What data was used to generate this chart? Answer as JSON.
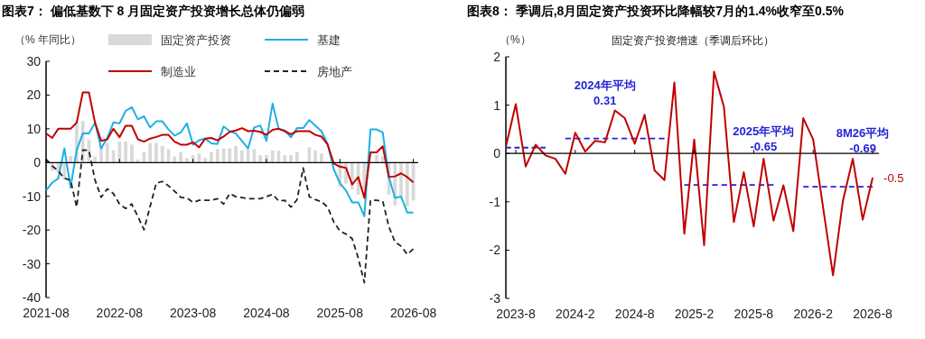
{
  "chart_data": [
    {
      "type": "line",
      "title": "图表7：  偏低基数下 8 月固定资产投资增长总体仍偏弱",
      "ylabel": "（% 年同比）",
      "legend": "top",
      "xlim": [
        "2021-08",
        "2026-08-25"
      ],
      "xticks": [
        "2021-08",
        "2022-08",
        "2023-08",
        "2024-08",
        "2025-08",
        "2026-08"
      ],
      "ylim": [
        -40,
        30
      ],
      "yticks": [
        -40,
        -30,
        -20,
        -10,
        0,
        10,
        20,
        30
      ],
      "x": [
        "2021-08",
        "2021-09",
        "2021-10",
        "2021-11",
        "2021-12",
        "2022-01",
        "2022-02",
        "2022-03",
        "2022-04",
        "2022-05",
        "2022-06",
        "2022-07",
        "2022-08",
        "2022-09",
        "2022-10",
        "2022-11",
        "2022-12",
        "2023-01",
        "2023-02",
        "2023-03",
        "2023-04",
        "2023-05",
        "2023-06",
        "2023-07",
        "2023-08",
        "2023-09",
        "2023-10",
        "2023-11",
        "2023-12",
        "2024-01",
        "2024-02",
        "2024-03",
        "2024-04",
        "2024-05",
        "2024-06",
        "2024-07",
        "2024-08",
        "2024-09",
        "2024-10",
        "2024-11",
        "2024-12",
        "2025-01",
        "2025-02",
        "2025-03",
        "2025-04",
        "2025-05",
        "2025-06",
        "2025-07",
        "2025-08",
        "2025-09",
        "2025-10",
        "2025-11",
        "2025-12",
        "2026-01",
        "2026-02",
        "2026-03",
        "2026-04",
        "2026-05",
        "2026-06",
        "2026-07",
        "2026-08"
      ],
      "series": [
        {
          "name": "固定资产投资",
          "type": "bar",
          "color": "#d9d9d9",
          "values": [
            null,
            -2.5,
            -3,
            -5,
            2,
            12.3,
            12.3,
            6.7,
            1.8,
            4.9,
            5.8,
            3.6,
            6.2,
            6.2,
            5.3,
            0.9,
            3.1,
            5.8,
            5.8,
            4.9,
            4,
            1.8,
            3.1,
            1.3,
            2.2,
            2.7,
            1.3,
            3.1,
            4,
            4.2,
            4.2,
            4.9,
            3.6,
            4,
            4,
            2.2,
            2.2,
            3.6,
            3.6,
            2.2,
            2.2,
            3.1,
            null,
            4.5,
            3.6,
            2.7,
            null,
            null,
            -7.2,
            -6.2,
            -8,
            -9.5,
            -8,
            null,
            2.2,
            1.8,
            -9.5,
            -12.7,
            -10,
            -13,
            -11.3
          ]
        },
        {
          "name": "基建",
          "color": "#1cb0e4",
          "line_style": "solid",
          "values": [
            -8.3,
            -6.0,
            -4.7,
            4.2,
            -7.4,
            3.7,
            8.6,
            8.6,
            11.8,
            4.2,
            7.3,
            11.9,
            11.6,
            15.3,
            16.4,
            12.8,
            13.7,
            10.4,
            12.2,
            12.2,
            9.8,
            8,
            8.9,
            11.6,
            5.3,
            6.6,
            7.1,
            5.7,
            5.5,
            10.7,
            9.3,
            8.6,
            6.4,
            4.2,
            10.4,
            11.0,
            6.4,
            17.5,
            10,
            9.5,
            7.5,
            10.2,
            10.2,
            12.6,
            10.9,
            9.3,
            5.5,
            -2.0,
            -6.1,
            -8.3,
            -11.8,
            -11.8,
            -15.9,
            9.8,
            9.8,
            8.9,
            -4.3,
            -10.5,
            -10.1,
            -14.8,
            -14.8
          ]
        },
        {
          "name": "制造业",
          "color": "#c00000",
          "line_style": "solid",
          "values": [
            8.6,
            7.3,
            10,
            10,
            10,
            11.8,
            20.8,
            20.8,
            11.8,
            6.4,
            6.9,
            10,
            7.5,
            10.9,
            10.9,
            6.9,
            6.2,
            7.1,
            7.6,
            8.2,
            8.2,
            6.2,
            5.3,
            5.3,
            6,
            4.5,
            7.1,
            7.3,
            6.6,
            7.7,
            9.1,
            9.5,
            10.2,
            9.3,
            9.4,
            9.1,
            8.2,
            9.7,
            10,
            9.3,
            8.4,
            9.3,
            9.3,
            9.3,
            8.2,
            7.7,
            5.3,
            -0.3,
            -1.2,
            -1.6,
            -6.5,
            -4.3,
            -10.5,
            3.0,
            3.0,
            4.8,
            -4.3,
            -4.1,
            -3.2,
            -4.3,
            -5.9
          ]
        },
        {
          "name": "房地产",
          "color": "#222222",
          "line_style": "dashed",
          "values": [
            1,
            -1,
            -2.5,
            -4.7,
            -5.2,
            -13.2,
            3.7,
            3.6,
            -5.2,
            -10.3,
            -7.8,
            -9.2,
            -12.3,
            -13.6,
            -12.3,
            -16,
            -19.9,
            -13,
            -6.1,
            -5.6,
            -6.9,
            -8.5,
            -10.3,
            -10.5,
            -11.8,
            -11.2,
            -11.2,
            -11.2,
            -10.7,
            -12.3,
            -9.2,
            -10.1,
            -10.4,
            -10.7,
            -10.7,
            -10.7,
            -10.1,
            -9.4,
            -11.4,
            -11.2,
            -13.2,
            -11,
            -1.6,
            -10.1,
            -11,
            -11.6,
            -13.2,
            -17.6,
            -20.3,
            -21.2,
            -22.5,
            -28.3,
            -35.6,
            -11.2,
            -11.2,
            -11.4,
            -19,
            -23.5,
            -24.8,
            -27.2,
            -25.6
          ]
        }
      ]
    },
    {
      "type": "line",
      "title": "图表8：  季调后,8月固定资产投资环比降幅较7月的1.4%收窄至0.5%",
      "subtitle": "固定资产投资增速（季调后环比）",
      "ylabel": "（%）",
      "xlim": [
        "2023-07",
        "2026-08-20"
      ],
      "xticks": [
        {
          "value": "2023-08",
          "label": "2023-8"
        },
        {
          "value": "2024-02",
          "label": "2024-2"
        },
        {
          "value": "2024-08",
          "label": "2024-8"
        },
        {
          "value": "2025-02",
          "label": "2025-2"
        },
        {
          "value": "2025-08",
          "label": "2025-8"
        },
        {
          "value": "2026-02",
          "label": "2026-2"
        },
        {
          "value": "2026-08",
          "label": "2026-8"
        }
      ],
      "ylim": [
        -3,
        2
      ],
      "yticks": [
        -3,
        -2,
        -1,
        0,
        1,
        2
      ],
      "series": [
        {
          "color": "#2323d8",
          "line_style": "dashed",
          "x": [
            "2023-07",
            "2023-11"
          ],
          "values": [
            0.12,
            0.12
          ]
        },
        {
          "color": "#2323d8",
          "line_style": "dashed",
          "x": [
            "2024-01",
            "2024-11"
          ],
          "values": [
            0.31,
            0.31
          ]
        },
        {
          "color": "#2323d8",
          "line_style": "dashed",
          "x": [
            "2025-01",
            "2025-10"
          ],
          "values": [
            -0.65,
            -0.65
          ]
        },
        {
          "color": "#2323d8",
          "line_style": "dashed",
          "x": [
            "2026-01",
            "2026-08"
          ],
          "values": [
            -0.69,
            -0.69
          ]
        },
        {
          "color": "#c00000",
          "line_style": "solid",
          "x": [
            "2023-07",
            "2023-08",
            "2023-09",
            "2023-10",
            "2023-11",
            "2023-12",
            "2024-01",
            "2024-02",
            "2024-03",
            "2024-04",
            "2024-05",
            "2024-06",
            "2024-07",
            "2024-08",
            "2024-09",
            "2024-10",
            "2024-11",
            "2024-12",
            "2025-01",
            "2025-02",
            "2025-03",
            "2025-04",
            "2025-05",
            "2025-06",
            "2025-07",
            "2025-08",
            "2025-09",
            "2025-10",
            "2025-11",
            "2025-12",
            "2026-01",
            "2026-02",
            "2026-04",
            "2026-05",
            "2026-06",
            "2026-07",
            "2026-08"
          ],
          "values": [
            0.14,
            1.02,
            -0.27,
            0.18,
            -0.04,
            -0.11,
            -0.42,
            0.43,
            0.04,
            0.26,
            0.23,
            0.89,
            0.73,
            0.2,
            0.8,
            -0.35,
            -0.55,
            1.47,
            -1.66,
            0.29,
            -1.9,
            1.69,
            0.96,
            -1.42,
            -0.39,
            -1.51,
            -0.11,
            -1.39,
            -0.66,
            -1.61,
            0.73,
            0.29,
            -2.52,
            -0.98,
            -0.11,
            -1.37,
            -0.5
          ],
          "value_labels": [
            null,
            null,
            null,
            null,
            null,
            null,
            null,
            null,
            null,
            null,
            null,
            null,
            null,
            null,
            null,
            null,
            null,
            null,
            null,
            null,
            null,
            null,
            null,
            null,
            null,
            null,
            null,
            null,
            null,
            null,
            null,
            null,
            null,
            null,
            null,
            null,
            "-0.5"
          ]
        }
      ],
      "annotations": [
        {
          "text": "2024年平均\n0.31",
          "x": "2024-05",
          "y": 0.31
        },
        {
          "text": "2025年平均\n-0.65",
          "x": "2025-09",
          "y": -0.65
        },
        {
          "text": "8M26平均\n-0.69",
          "x": "2026-07",
          "y": -0.69
        }
      ]
    }
  ]
}
